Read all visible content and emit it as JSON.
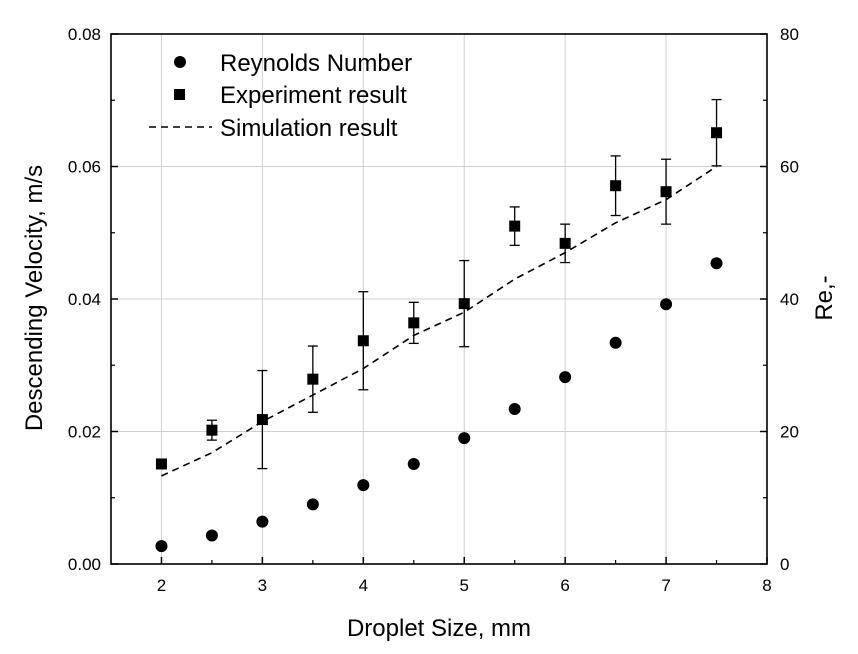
{
  "chart_data": {
    "type": "scatter",
    "xlabel": "Droplet Size, mm",
    "ylabel_left": "Descending Velocity, m/s",
    "ylabel_right": "Re,-",
    "xlim": [
      1.5,
      8
    ],
    "ylim_left": [
      0,
      0.08
    ],
    "ylim_right": [
      0,
      80
    ],
    "x_ticks": [
      "2",
      "3",
      "4",
      "5",
      "6",
      "7",
      "8"
    ],
    "x_tick_values": [
      2,
      3,
      4,
      5,
      6,
      7,
      8
    ],
    "y_left_ticks": [
      "0.00",
      "0.02",
      "0.04",
      "0.06",
      "0.08"
    ],
    "y_left_tick_values": [
      0,
      0.02,
      0.04,
      0.06,
      0.08
    ],
    "y_right_ticks": [
      "0",
      "20",
      "40",
      "60",
      "80"
    ],
    "y_right_tick_values": [
      0,
      20,
      40,
      60,
      80
    ],
    "grid": true,
    "legend_position": "top-left",
    "series": [
      {
        "name": "Reynolds Number",
        "marker": "circle",
        "axis": "right",
        "x": [
          2,
          2.5,
          3,
          3.5,
          4,
          4.5,
          5,
          5.5,
          6,
          6.5,
          7,
          7.5
        ],
        "y": [
          2.7,
          4.3,
          6.4,
          9.0,
          11.9,
          15.1,
          19.0,
          23.4,
          28.2,
          33.4,
          39.2,
          45.4
        ]
      },
      {
        "name": "Experiment result",
        "marker": "square",
        "axis": "left",
        "x": [
          2,
          2.5,
          3,
          3.5,
          4,
          4.5,
          5,
          5.5,
          6,
          6.5,
          7,
          7.5
        ],
        "y": [
          0.0151,
          0.0202,
          0.0218,
          0.0279,
          0.0337,
          0.0364,
          0.0393,
          0.051,
          0.0484,
          0.0571,
          0.0562,
          0.0651
        ],
        "error": [
          0,
          0.0015,
          0.0074,
          0.005,
          0.0074,
          0.0031,
          0.0065,
          0.0029,
          0.0029,
          0.0045,
          0.0049,
          0.005
        ]
      },
      {
        "name": "Simulation result",
        "line": "dashed",
        "axis": "left",
        "x": [
          2,
          2.5,
          3,
          3.5,
          4,
          4.5,
          5,
          5.5,
          6,
          6.5,
          7,
          7.5
        ],
        "y": [
          0.0133,
          0.0168,
          0.0215,
          0.0255,
          0.0295,
          0.0345,
          0.038,
          0.043,
          0.047,
          0.0515,
          0.055,
          0.06
        ]
      }
    ]
  }
}
